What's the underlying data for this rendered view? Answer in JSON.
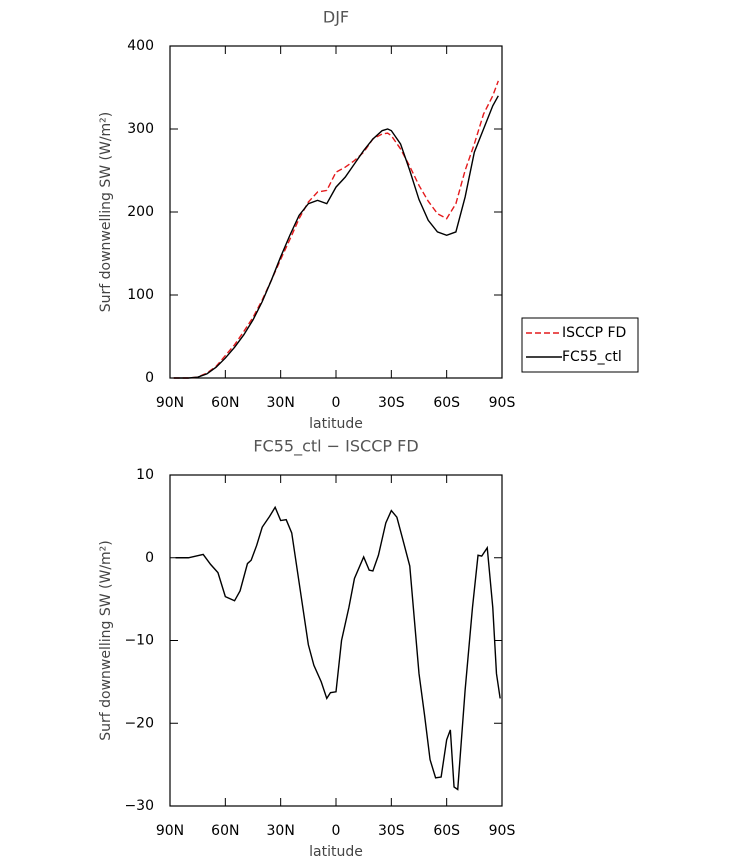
{
  "chart_data": [
    {
      "type": "line",
      "title": "DJF",
      "xlabel": "latitude",
      "ylabel": "Surf downwelling SW (W/m²)",
      "x": [
        88,
        85,
        80,
        75,
        70,
        65,
        60,
        55,
        50,
        45,
        40,
        35,
        30,
        25,
        20,
        15,
        10,
        5,
        0,
        -5,
        -10,
        -15,
        -20,
        -25,
        -28,
        -30,
        -35,
        -40,
        -45,
        -50,
        -55,
        -60,
        -65,
        -70,
        -75,
        -80,
        -85,
        -88
      ],
      "series": [
        {
          "name": "ISCCP FD",
          "color": "#e41a1c",
          "style": "dashed",
          "values": [
            0,
            0,
            0,
            1,
            6,
            14,
            27,
            40,
            56,
            73,
            94,
            118,
            143,
            167,
            192,
            212,
            224,
            226,
            248,
            254,
            262,
            272,
            288,
            294,
            295,
            292,
            276,
            255,
            232,
            213,
            198,
            192,
            210,
            250,
            282,
            318,
            340,
            358
          ]
        },
        {
          "name": "FC55_ctl",
          "color": "#000000",
          "style": "solid",
          "values": [
            0,
            0,
            0,
            1,
            5,
            13,
            24,
            37,
            52,
            70,
            92,
            118,
            146,
            172,
            196,
            210,
            214,
            210,
            230,
            242,
            258,
            274,
            288,
            298,
            300,
            298,
            282,
            250,
            215,
            190,
            176,
            172,
            176,
            218,
            272,
            300,
            328,
            340
          ]
        }
      ],
      "xlim": [
        90,
        -90
      ],
      "xticks": [
        {
          "value": 90,
          "label": "90N"
        },
        {
          "value": 60,
          "label": "60N"
        },
        {
          "value": 30,
          "label": "30N"
        },
        0,
        {
          "value": -30,
          "label": "30S"
        },
        {
          "value": -60,
          "label": "60S"
        },
        {
          "value": -90,
          "label": "90S"
        }
      ],
      "ylim": [
        0,
        400
      ],
      "yticks": [
        0,
        100,
        200,
        300,
        400
      ],
      "legend": "right"
    },
    {
      "type": "line",
      "title": "FC55_ctl − ISCCP FD",
      "xlabel": "latitude",
      "ylabel": "Surf downwelling SW (W/m²)",
      "x": [
        87,
        80,
        72,
        68,
        64,
        60,
        55,
        52,
        48,
        46,
        43,
        40,
        36,
        33,
        30,
        27,
        24,
        20,
        15,
        12,
        8,
        5,
        3,
        0,
        -3,
        -7,
        -10,
        -15,
        -18,
        -20,
        -23,
        -27,
        -30,
        -33,
        -36,
        -40,
        -45,
        -48,
        -51,
        -54,
        -57,
        -60,
        -62,
        -64,
        -66,
        -70,
        -74,
        -77,
        -79,
        -82,
        -85,
        -87,
        -89
      ],
      "series": [
        {
          "color": "#000000",
          "style": "solid",
          "values": [
            0,
            0,
            0.4,
            -0.8,
            -1.8,
            -4.7,
            -5.2,
            -4,
            -0.7,
            -0.3,
            1.5,
            3.7,
            5,
            6.1,
            4.5,
            4.6,
            3,
            -3,
            -10.5,
            -13,
            -15,
            -17,
            -16.3,
            -16.2,
            -10,
            -6,
            -2.5,
            0.1,
            -1.5,
            -1.6,
            0.3,
            4.2,
            5.7,
            4.9,
            2.4,
            -1,
            -14,
            -19,
            -24.4,
            -26.6,
            -26.5,
            -22,
            -20.8,
            -27.7,
            -28,
            -16,
            -6,
            0.3,
            0.2,
            1.2,
            -6,
            -14,
            -17
          ]
        }
      ],
      "xlim": [
        90,
        -90
      ],
      "xticks": [
        {
          "value": 90,
          "label": "90N"
        },
        {
          "value": 60,
          "label": "60N"
        },
        {
          "value": 30,
          "label": "30N"
        },
        0,
        {
          "value": -30,
          "label": "30S"
        },
        {
          "value": -60,
          "label": "60S"
        },
        {
          "value": -90,
          "label": "90S"
        }
      ],
      "ylim": [
        -30,
        10
      ],
      "yticks": [
        {
          "value": -30,
          "label": "−30"
        },
        {
          "value": -20,
          "label": "−20"
        },
        {
          "value": -10,
          "label": "−10"
        },
        0,
        10
      ]
    }
  ]
}
